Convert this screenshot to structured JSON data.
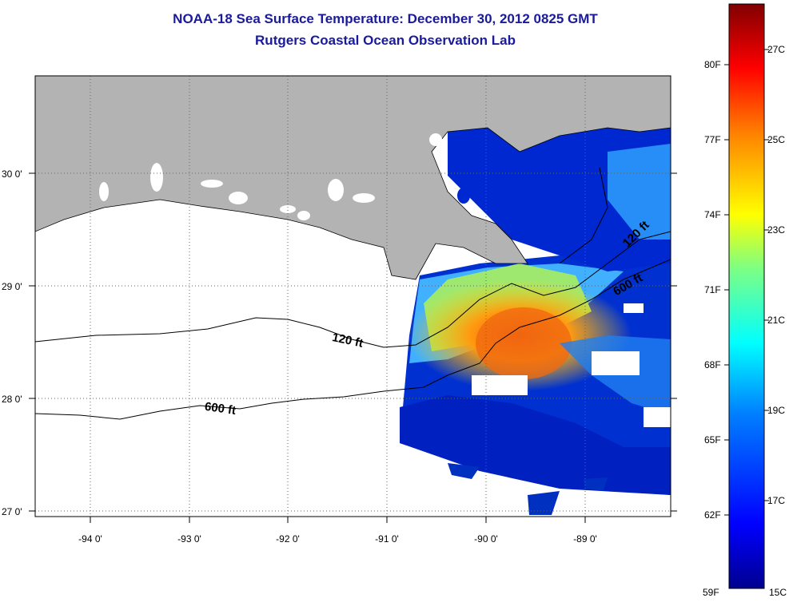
{
  "title": {
    "line1": "NOAA-18 Sea Surface Temperature:  December 30, 2012 0825 GMT",
    "line2": "Rutgers Coastal Ocean Observation Lab"
  },
  "map": {
    "lat_ticks": [
      "30 0'",
      "29 0'",
      "28 0'",
      "27 0'"
    ],
    "lon_ticks": [
      "-94 0'",
      "-93 0'",
      "-92 0'",
      "-91 0'",
      "-90 0'",
      "-89 0'"
    ],
    "contour_labels": [
      {
        "text": "120 ft",
        "kind": "isobath-120"
      },
      {
        "text": "600 ft",
        "kind": "isobath-600"
      },
      {
        "text": "120 ft",
        "kind": "isobath-120-east"
      },
      {
        "text": "600 ft",
        "kind": "isobath-600-east"
      }
    ],
    "colors": {
      "land": "#b3b3b3",
      "ocean_nodata": "#ffffff",
      "title": "#1a1a9c"
    }
  },
  "colorbar": {
    "fahrenheit_labels": [
      "80F",
      "77F",
      "74F",
      "71F",
      "68F",
      "65F",
      "62F",
      "59F"
    ],
    "celsius_labels": [
      "27C",
      "25C",
      "23C",
      "21C",
      "19C",
      "17C",
      "15C"
    ],
    "stops": [
      "#00008f",
      "#0000ff",
      "#0080ff",
      "#00ffff",
      "#80ff80",
      "#ffff00",
      "#ff8000",
      "#ff0000",
      "#800000"
    ]
  }
}
